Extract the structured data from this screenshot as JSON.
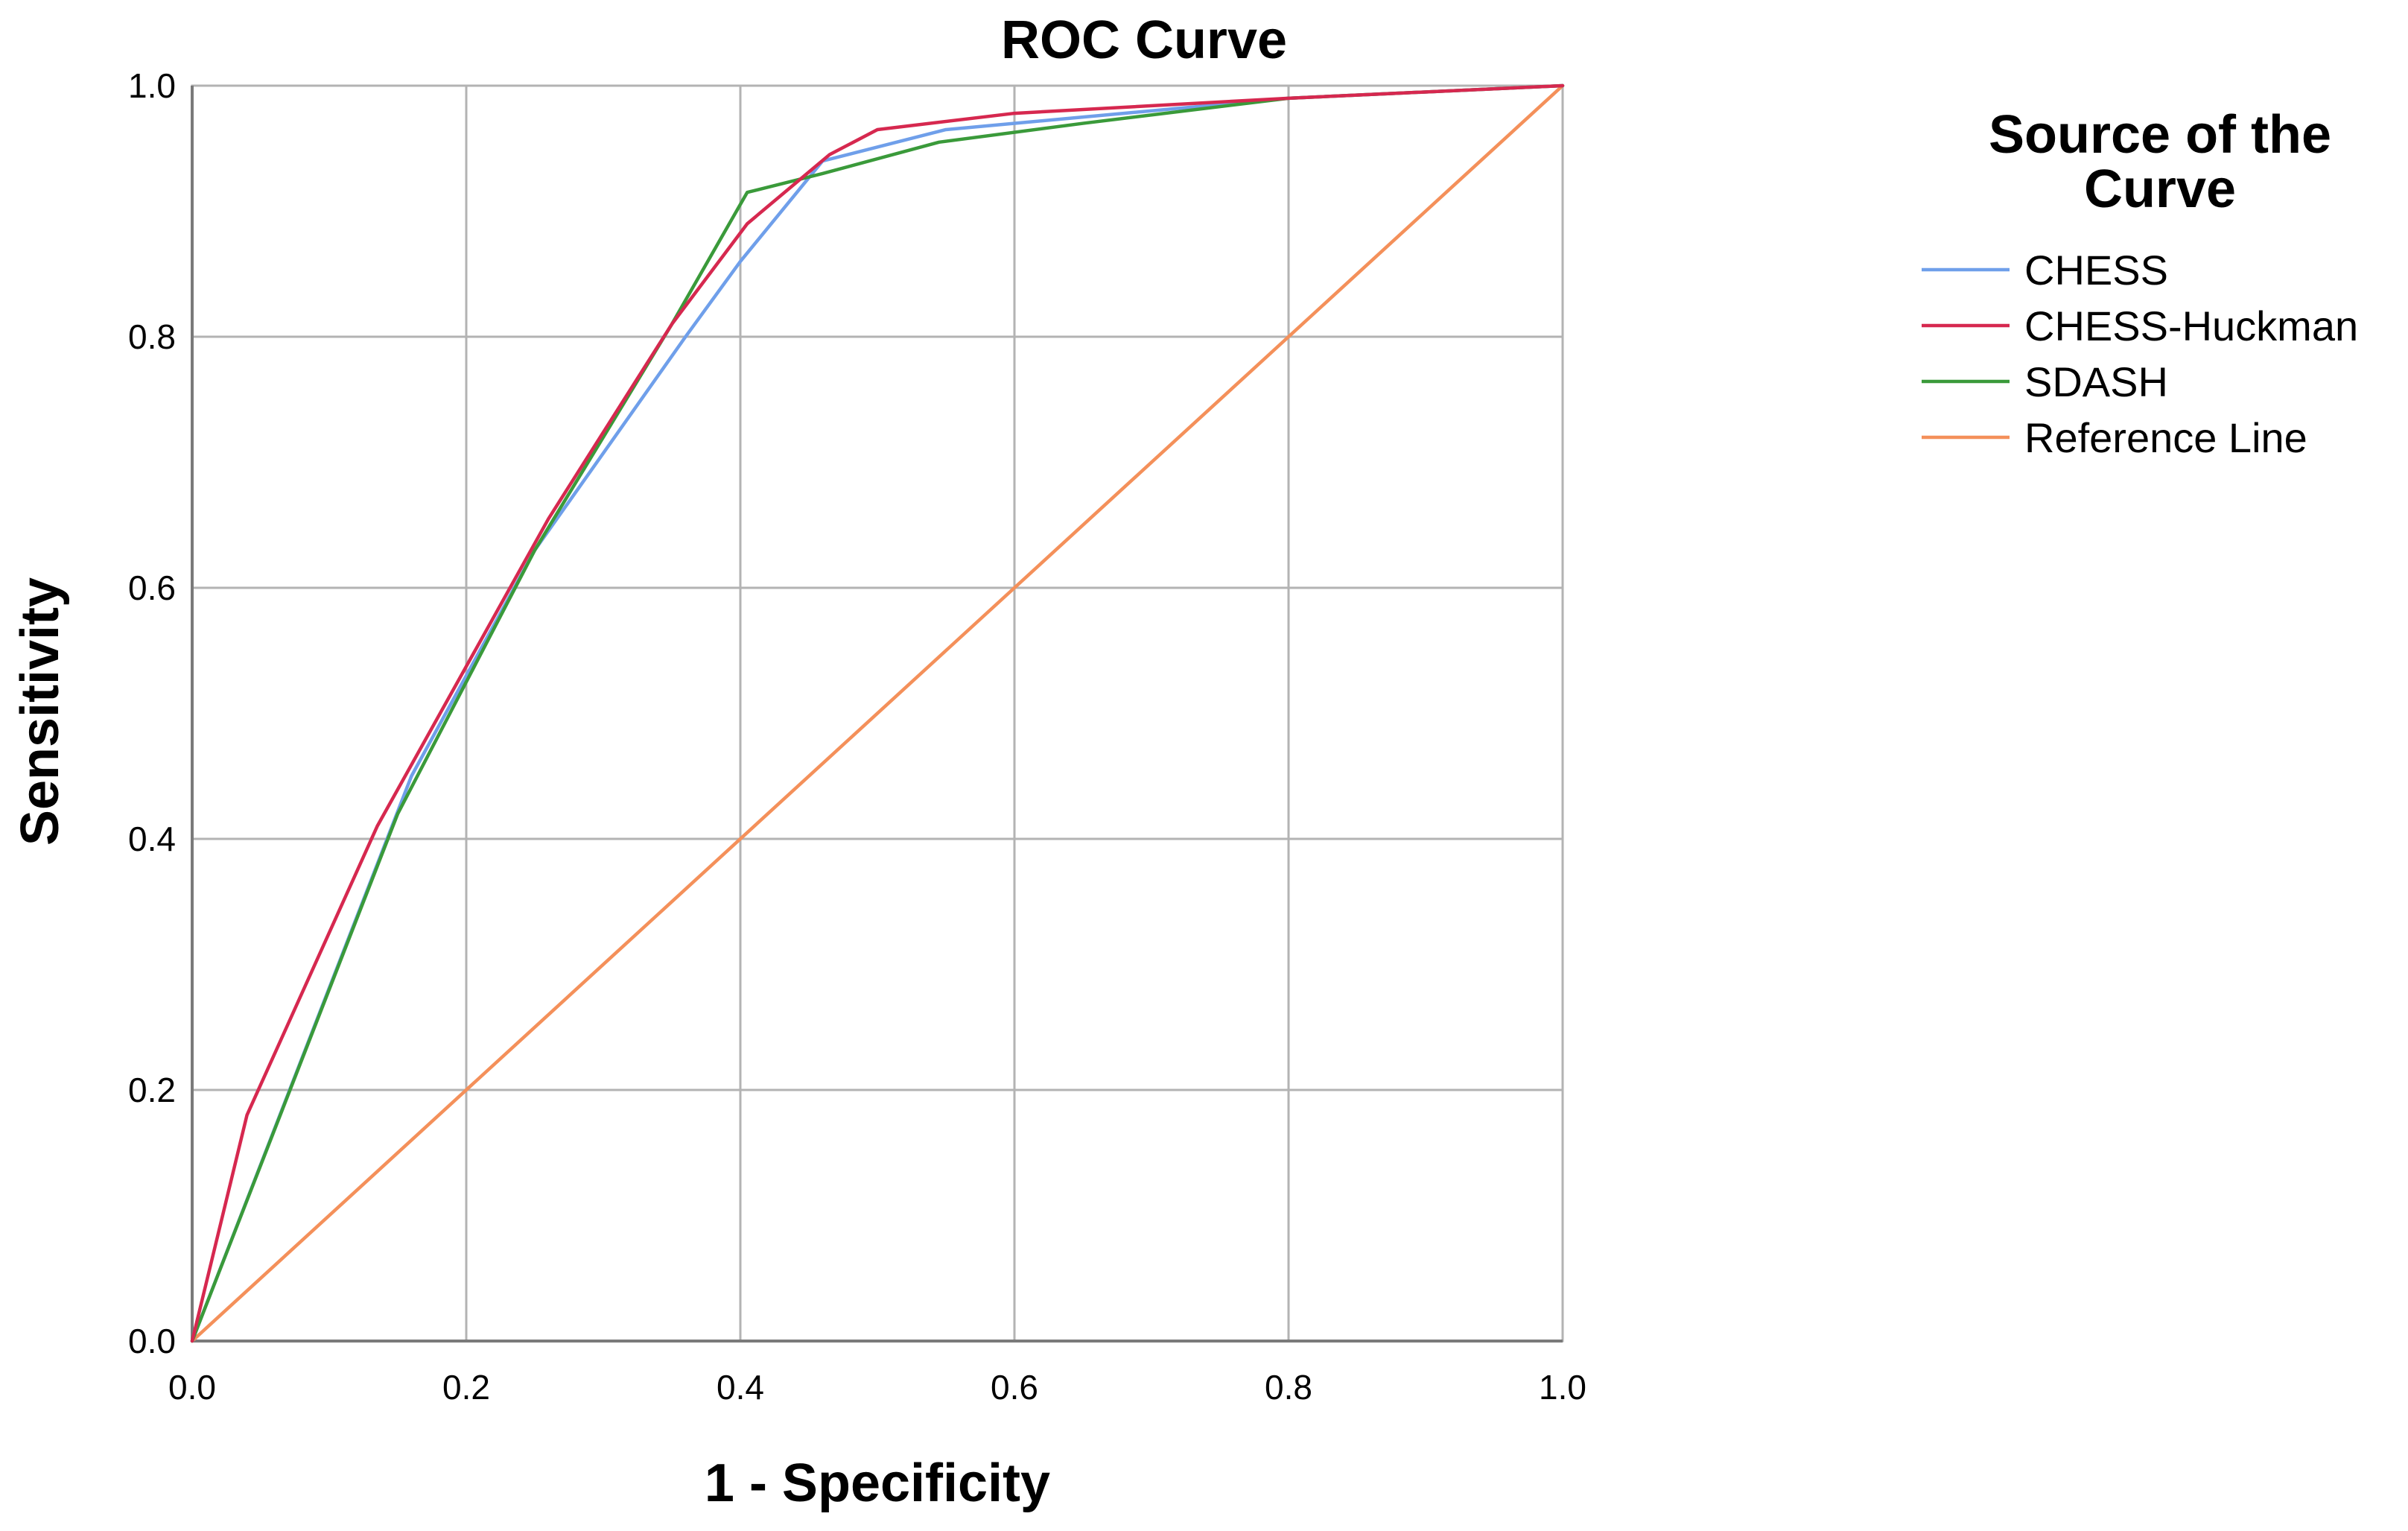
{
  "chart_data": {
    "type": "line",
    "title": "ROC Curve",
    "xlabel": "1 - Specificity",
    "ylabel": "Sensitivity",
    "xlim": [
      0,
      1
    ],
    "ylim": [
      0,
      1
    ],
    "xticks": [
      "0.0",
      "0.2",
      "0.4",
      "0.6",
      "0.8",
      "1.0"
    ],
    "yticks": [
      "0.0",
      "0.2",
      "0.4",
      "0.6",
      "0.8",
      "1.0"
    ],
    "grid": true,
    "legend": {
      "title": "Source of the Curve",
      "title_lines": [
        "Source of the",
        "Curve"
      ],
      "placement": "right"
    },
    "series": [
      {
        "name": "CHESS",
        "color": "#6f9fea",
        "x": [
          0,
          0.16,
          0.25,
          0.36,
          0.4,
          0.46,
          0.55,
          0.65,
          0.8,
          1.0
        ],
        "y": [
          0,
          0.45,
          0.63,
          0.8,
          0.86,
          0.94,
          0.965,
          0.975,
          0.99,
          1.0
        ]
      },
      {
        "name": "CHESS-Huckman",
        "color": "#d6284f",
        "x": [
          0,
          0.04,
          0.135,
          0.26,
          0.35,
          0.405,
          0.465,
          0.5,
          0.6,
          0.8,
          1.0
        ],
        "y": [
          0,
          0.18,
          0.41,
          0.655,
          0.81,
          0.89,
          0.945,
          0.965,
          0.978,
          0.99,
          1.0
        ]
      },
      {
        "name": "SDASH",
        "color": "#3a9a3a",
        "x": [
          0,
          0.15,
          0.25,
          0.35,
          0.405,
          0.46,
          0.545,
          0.65,
          0.8,
          1.0
        ],
        "y": [
          0,
          0.42,
          0.63,
          0.81,
          0.915,
          0.93,
          0.955,
          0.97,
          0.99,
          1.0
        ]
      },
      {
        "name": "Reference Line",
        "color": "#f4905a",
        "x": [
          0,
          1
        ],
        "y": [
          0,
          1
        ]
      }
    ]
  }
}
